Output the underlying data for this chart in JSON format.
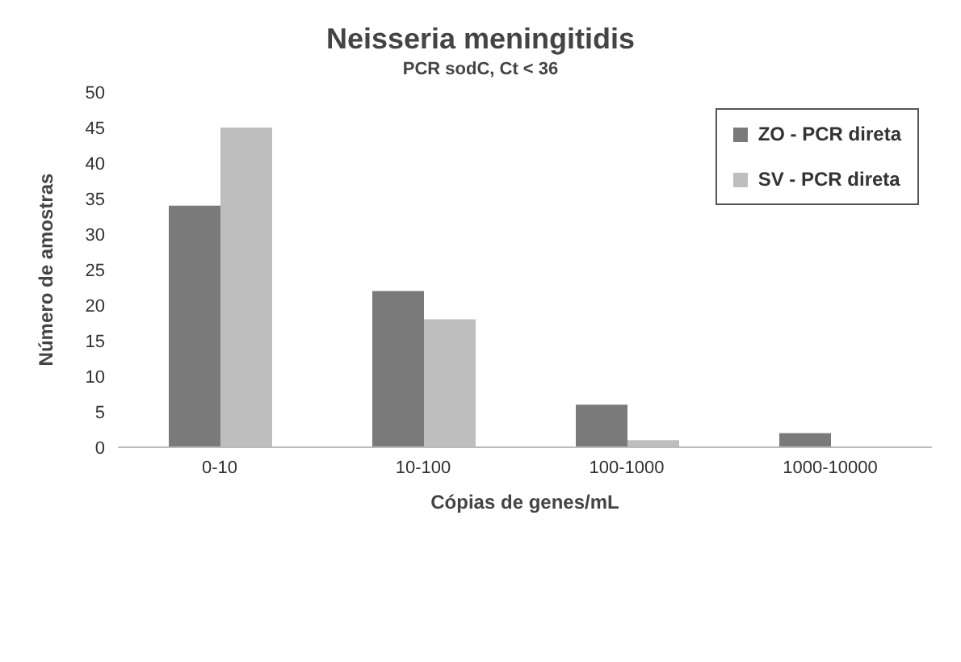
{
  "chart_data": {
    "type": "bar",
    "title": "Neisseria meningitidis",
    "subtitle": "PCR sodC, Ct < 36",
    "xlabel": "Cópias de genes/mL",
    "ylabel": "Número de amostras",
    "categories": [
      "0-10",
      "10-100",
      "100-1000",
      "1000-10000"
    ],
    "series": [
      {
        "name": "ZO - PCR direta",
        "color": "#7a7a7a",
        "values": [
          34,
          22,
          6,
          2
        ]
      },
      {
        "name": "SV - PCR direta",
        "color": "#bebebe",
        "values": [
          45,
          18,
          1,
          0
        ]
      }
    ],
    "ylim": [
      0,
      50
    ],
    "yticks": [
      0,
      5,
      10,
      15,
      20,
      25,
      30,
      35,
      40,
      45,
      50
    ],
    "grid": false,
    "legend": "top right"
  }
}
